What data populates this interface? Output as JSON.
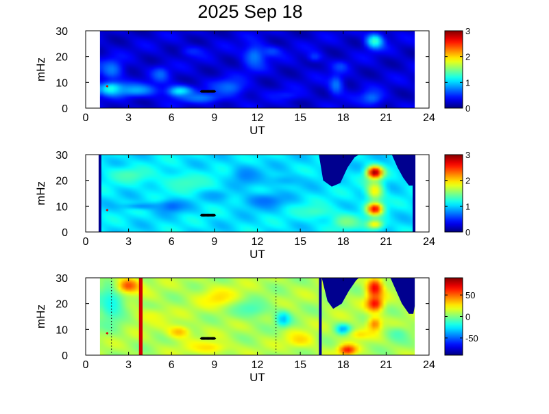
{
  "figure": {
    "title": "2025 Sep 18"
  },
  "chart_data": [
    {
      "type": "heatmap",
      "title": "2025 Sep 18",
      "xlabel": "UT",
      "ylabel": "mHz",
      "xlim": [
        0,
        24
      ],
      "ylim": [
        0,
        30
      ],
      "xticks": [
        0,
        3,
        6,
        9,
        12,
        15,
        18,
        21,
        24
      ],
      "yticks": [
        0,
        10,
        20,
        30
      ],
      "data_x_range": [
        1,
        23
      ],
      "grid": false,
      "colorbar": {
        "min": 0,
        "max": 3,
        "ticks": [
          0,
          1,
          2,
          3
        ],
        "tick_labels": [
          "0",
          "1",
          "2",
          "3"
        ]
      },
      "background_value": 0.25,
      "blobs": [
        {
          "x": 1.8,
          "y": 15,
          "rx": 0.8,
          "ry": 4,
          "value": 0.75
        },
        {
          "x": 1.8,
          "y": 7.5,
          "rx": 0.9,
          "ry": 2.5,
          "value": 1.3
        },
        {
          "x": 3.5,
          "y": 7,
          "rx": 1.5,
          "ry": 2.5,
          "value": 0.9
        },
        {
          "x": 5.2,
          "y": 13,
          "rx": 0.6,
          "ry": 3,
          "value": 0.7
        },
        {
          "x": 6.6,
          "y": 6.5,
          "rx": 0.9,
          "ry": 2.2,
          "value": 1.15
        },
        {
          "x": 8,
          "y": 4,
          "rx": 1.5,
          "ry": 2,
          "value": 0.75
        },
        {
          "x": 10,
          "y": 8,
          "rx": 1.2,
          "ry": 3.5,
          "value": 0.7
        },
        {
          "x": 11.8,
          "y": 20,
          "rx": 0.8,
          "ry": 5,
          "value": 0.75
        },
        {
          "x": 13,
          "y": 22,
          "rx": 0.7,
          "ry": 2,
          "value": 0.6
        },
        {
          "x": 16,
          "y": 20,
          "rx": 0.5,
          "ry": 2,
          "value": 0.55
        },
        {
          "x": 17.5,
          "y": 9,
          "rx": 0.5,
          "ry": 4,
          "value": 0.75
        },
        {
          "x": 17.8,
          "y": 16,
          "rx": 0.5,
          "ry": 2,
          "value": 0.6
        },
        {
          "x": 20.2,
          "y": 26,
          "rx": 0.6,
          "ry": 3,
          "value": 1.3
        },
        {
          "x": 20,
          "y": 4,
          "rx": 0.8,
          "ry": 3,
          "value": 0.7
        },
        {
          "x": 14,
          "y": 5,
          "rx": 1.2,
          "ry": 2,
          "value": 0.45
        },
        {
          "x": 7.5,
          "y": 22,
          "rx": 0.8,
          "ry": 2,
          "value": 0.5
        }
      ],
      "markers": [
        {
          "kind": "dot-series",
          "x_start": 8.1,
          "x_end": 9.0,
          "y": 6.5,
          "count": 17,
          "color": "#000000"
        },
        {
          "kind": "dot",
          "x": 1.5,
          "y": 8.5,
          "color": "#e00000"
        }
      ]
    },
    {
      "type": "heatmap",
      "xlabel": "UT",
      "ylabel": "mHz",
      "xlim": [
        0,
        24
      ],
      "ylim": [
        0,
        30
      ],
      "xticks": [
        0,
        3,
        6,
        9,
        12,
        15,
        18,
        21,
        24
      ],
      "yticks": [
        0,
        10,
        20,
        30
      ],
      "data_x_range": [
        1,
        23
      ],
      "grid": false,
      "colorbar": {
        "min": 0,
        "max": 3,
        "ticks": [
          0,
          1,
          2,
          3
        ],
        "tick_labels": [
          "0",
          "1",
          "2",
          "3"
        ]
      },
      "background_value": 1.05,
      "blobs": [
        {
          "x": 6,
          "y": 10,
          "rx": 1.0,
          "ry": 2.5,
          "value": 0.65
        },
        {
          "x": 4,
          "y": 10,
          "rx": 1.5,
          "ry": 1.2,
          "value": 0.8
        },
        {
          "x": 12.5,
          "y": 12,
          "rx": 1.5,
          "ry": 3,
          "value": 0.7
        },
        {
          "x": 11.2,
          "y": 22,
          "rx": 1.0,
          "ry": 4,
          "value": 0.75
        },
        {
          "x": 14,
          "y": 20,
          "rx": 1.5,
          "ry": 2.5,
          "value": 0.9
        },
        {
          "x": 3,
          "y": 22,
          "rx": 1.5,
          "ry": 3,
          "value": 1.35
        },
        {
          "x": 7,
          "y": 19,
          "rx": 2,
          "ry": 4,
          "value": 1.3
        },
        {
          "x": 16,
          "y": 8,
          "rx": 1.5,
          "ry": 3,
          "value": 1.3
        },
        {
          "x": 18.2,
          "y": 4,
          "rx": 1.0,
          "ry": 3,
          "value": 1.5
        },
        {
          "x": 20.2,
          "y": 23,
          "rx": 0.55,
          "ry": 2.5,
          "value": 3.0
        },
        {
          "x": 20.2,
          "y": 9,
          "rx": 0.55,
          "ry": 2.5,
          "value": 2.7
        },
        {
          "x": 20.2,
          "y": 16,
          "rx": 0.6,
          "ry": 4,
          "value": 1.9
        },
        {
          "x": 20.2,
          "y": 3,
          "rx": 0.6,
          "ry": 2,
          "value": 1.9
        },
        {
          "x": 9,
          "y": 14,
          "rx": 1,
          "ry": 2,
          "value": 0.85
        }
      ],
      "edge_lines": [
        {
          "x": 1.0,
          "color": "#00008f"
        },
        {
          "x": 22.95,
          "color": "#00008f"
        }
      ],
      "masks": [
        {
          "color": "#00008f",
          "x_from": 16.3,
          "x_to": 19.1,
          "profile": [
            [
              16.3,
              30
            ],
            [
              16.6,
              20
            ],
            [
              17.2,
              17.6
            ],
            [
              17.8,
              19
            ],
            [
              18.3,
              25
            ],
            [
              18.8,
              29
            ],
            [
              19.1,
              30
            ]
          ]
        },
        {
          "color": "#00008f",
          "x_from": 21.4,
          "x_to": 23.0,
          "profile": [
            [
              21.4,
              30
            ],
            [
              21.8,
              25
            ],
            [
              22.2,
              21
            ],
            [
              22.6,
              18
            ],
            [
              22.9,
              18
            ],
            [
              23.0,
              20
            ]
          ]
        }
      ],
      "markers": [
        {
          "kind": "dot-series",
          "x_start": 8.1,
          "x_end": 9.0,
          "y": 6.5,
          "count": 17,
          "color": "#000000"
        },
        {
          "kind": "dot",
          "x": 1.5,
          "y": 8.5,
          "color": "#e00000"
        }
      ]
    },
    {
      "type": "heatmap",
      "xlabel": "UT",
      "ylabel": "mHz",
      "xlim": [
        0,
        24
      ],
      "ylim": [
        0,
        30
      ],
      "xticks": [
        0,
        3,
        6,
        9,
        12,
        15,
        18,
        21,
        24
      ],
      "yticks": [
        0,
        10,
        20,
        30
      ],
      "data_x_range": [
        1,
        23
      ],
      "grid": false,
      "colorbar": {
        "min": -90,
        "max": 90,
        "ticks": [
          50,
          0,
          -50
        ],
        "tick_labels": [
          "50",
          "0",
          "-50"
        ]
      },
      "background_value": 8,
      "blobs": [
        {
          "x": 1.8,
          "y": 20,
          "rx": 1.0,
          "ry": 8,
          "value": -20
        },
        {
          "x": 6.5,
          "y": 9,
          "rx": 0.8,
          "ry": 2.5,
          "value": 35
        },
        {
          "x": 3,
          "y": 27,
          "rx": 0.8,
          "ry": 3,
          "value": 55
        },
        {
          "x": 9.5,
          "y": 22,
          "rx": 1.5,
          "ry": 4,
          "value": 30
        },
        {
          "x": 8.5,
          "y": 3,
          "rx": 1.5,
          "ry": 2.5,
          "value": 28
        },
        {
          "x": 13.8,
          "y": 14,
          "rx": 0.5,
          "ry": 3,
          "value": -35
        },
        {
          "x": 11.5,
          "y": 18,
          "rx": 1.5,
          "ry": 4,
          "value": -10
        },
        {
          "x": 15,
          "y": 6,
          "rx": 1.0,
          "ry": 3,
          "value": 30
        },
        {
          "x": 18.3,
          "y": 2,
          "rx": 0.6,
          "ry": 2,
          "value": 65
        },
        {
          "x": 18,
          "y": 10,
          "rx": 0.5,
          "ry": 2,
          "value": -40
        },
        {
          "x": 19.2,
          "y": 8,
          "rx": 0.8,
          "ry": 2,
          "value": 28
        },
        {
          "x": 20.2,
          "y": 26,
          "rx": 0.55,
          "ry": 4,
          "value": 70
        },
        {
          "x": 20.2,
          "y": 20,
          "rx": 0.55,
          "ry": 3,
          "value": 68
        },
        {
          "x": 20.2,
          "y": 12,
          "rx": 0.5,
          "ry": 3,
          "value": 45
        },
        {
          "x": 21.8,
          "y": 8,
          "rx": 0.8,
          "ry": 3,
          "value": -10
        },
        {
          "x": 4.5,
          "y": 15,
          "rx": 1.2,
          "ry": 3,
          "value": 20
        }
      ],
      "stripes": [
        {
          "x": 3.85,
          "width": 0.25,
          "color": "#d00000"
        }
      ],
      "dotted_lines": [
        {
          "x": 1.8
        },
        {
          "x": 13.3
        }
      ],
      "edge_lines": [
        {
          "x": 16.4,
          "color": "#00008f"
        }
      ],
      "masks": [
        {
          "color": "#00008f",
          "x_from": 16.5,
          "x_to": 19.1,
          "profile": [
            [
              16.5,
              30
            ],
            [
              16.9,
              21
            ],
            [
              17.3,
              18
            ],
            [
              17.9,
              20
            ],
            [
              18.4,
              25
            ],
            [
              18.9,
              29
            ],
            [
              19.1,
              30
            ]
          ]
        },
        {
          "color": "#00008f",
          "x_from": 21.3,
          "x_to": 23.0,
          "profile": [
            [
              21.3,
              30
            ],
            [
              21.7,
              25
            ],
            [
              22.1,
              20
            ],
            [
              22.6,
              16
            ],
            [
              22.9,
              16
            ],
            [
              23.0,
              19
            ]
          ]
        }
      ],
      "markers": [
        {
          "kind": "dot-series",
          "x_start": 8.1,
          "x_end": 9.0,
          "y": 6.5,
          "count": 17,
          "color": "#000000"
        },
        {
          "kind": "dot",
          "x": 1.5,
          "y": 8.5,
          "color": "#e00000"
        }
      ]
    }
  ]
}
